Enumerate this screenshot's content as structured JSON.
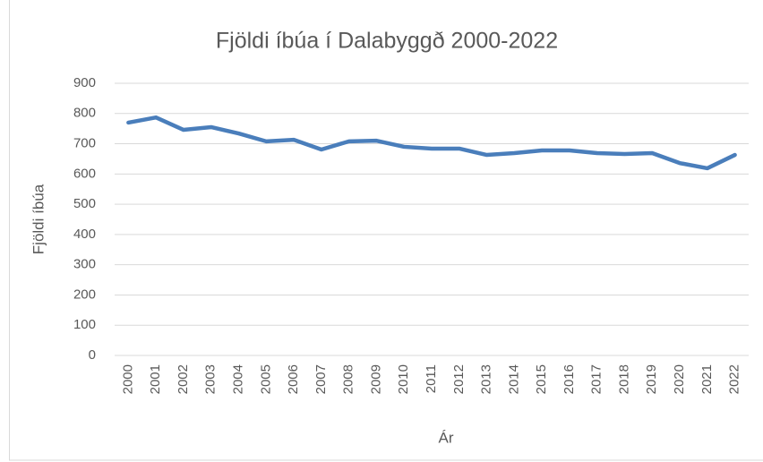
{
  "chart_data": {
    "type": "line",
    "title": "Fjöldi íbúa í Dalabyggð 2000-2022",
    "x_label": "Ár",
    "y_label": "Fjöldi íbúa",
    "categories": [
      "2000",
      "2001",
      "2002",
      "2003",
      "2004",
      "2005",
      "2006",
      "2007",
      "2008",
      "2009",
      "2010",
      "2011",
      "2012",
      "2013",
      "2014",
      "2015",
      "2016",
      "2017",
      "2018",
      "2019",
      "2020",
      "2021",
      "2022"
    ],
    "series": [
      {
        "name": "Fjöldi íbúa",
        "color": "#4a7ebb",
        "values": [
          770,
          787,
          746,
          755,
          734,
          708,
          713,
          681,
          708,
          710,
          690,
          684,
          684,
          663,
          669,
          678,
          678,
          669,
          666,
          669,
          636,
          619,
          663
        ]
      }
    ],
    "ylim": [
      0,
      900
    ],
    "yticks": [
      0,
      100,
      200,
      300,
      400,
      500,
      600,
      700,
      800,
      900
    ],
    "grid": true
  }
}
